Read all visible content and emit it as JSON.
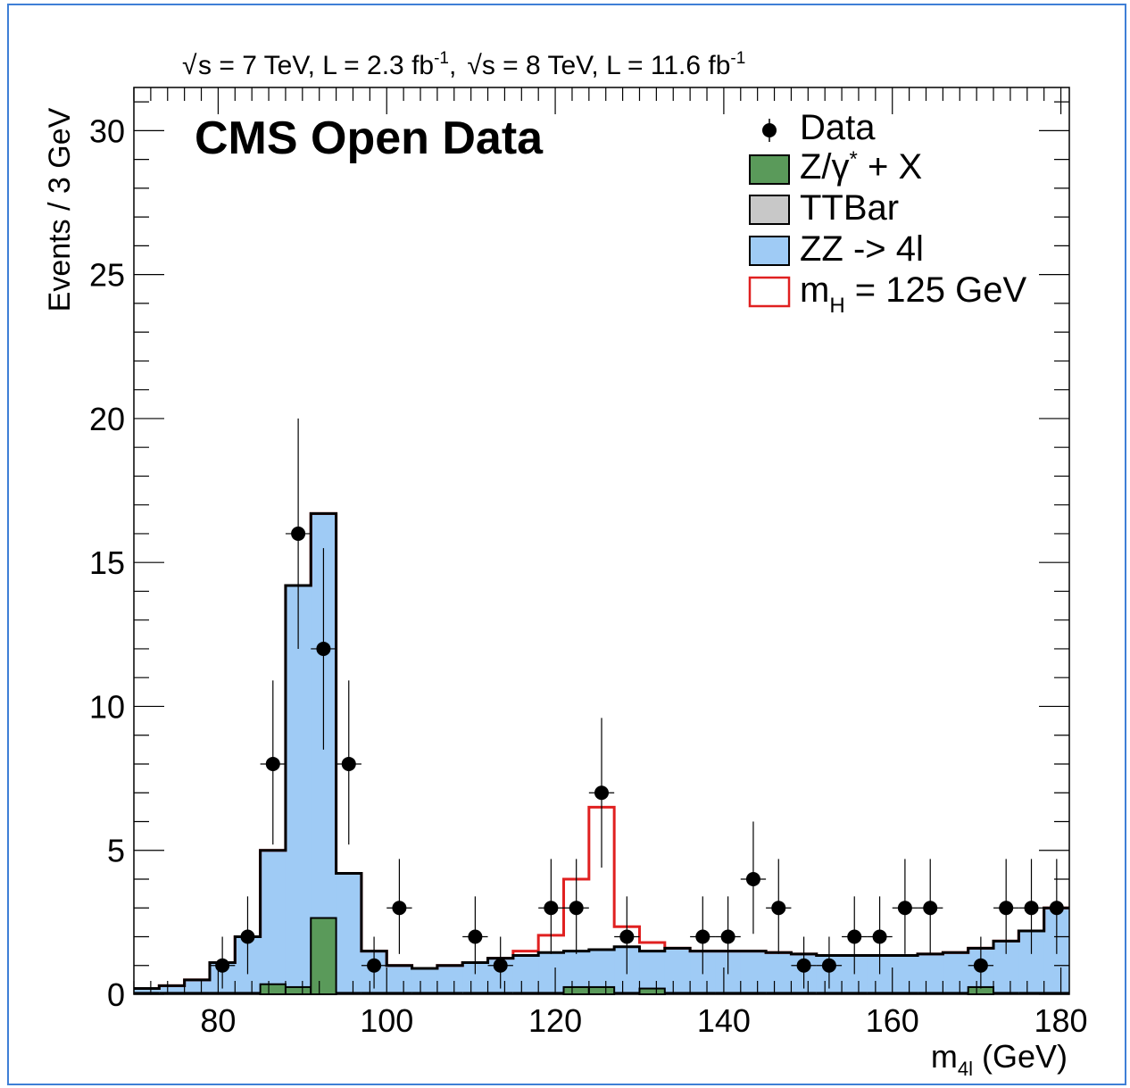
{
  "chart_data": {
    "type": "histogram",
    "header": {
      "part1_prefix": "s = 7 TeV, L = 2.3 fb",
      "part1_sup": "-1",
      "separator": ",",
      "part2_prefix": "s = 8 TeV, L = 11.6 fb",
      "part2_sup": "-1"
    },
    "watermark": "CMS Open Data",
    "ylabel": "Events / 3 GeV",
    "xlabel": {
      "main": "m",
      "sub": "4l",
      "unit": " (GeV)"
    },
    "xlim": [
      70,
      181
    ],
    "ylim": [
      0,
      31.5
    ],
    "xticks": [
      80,
      100,
      120,
      140,
      160,
      180
    ],
    "yticks": [
      0,
      5,
      10,
      15,
      20,
      25,
      30
    ],
    "bin_edges": [
      70,
      73,
      76,
      79,
      82,
      85,
      88,
      91,
      94,
      97,
      100,
      103,
      106,
      109,
      112,
      115,
      118,
      121,
      124,
      127,
      130,
      133,
      136,
      139,
      142,
      145,
      148,
      151,
      154,
      157,
      160,
      163,
      166,
      169,
      172,
      175,
      178,
      181
    ],
    "legend": {
      "data": "Data",
      "zx": {
        "main": "Z/γ",
        "sup": "*",
        "rest": " + X"
      },
      "ttbar": "TTBar",
      "zz": "ZZ -> 4l",
      "higgs": {
        "main": "m",
        "sub": "H",
        "rest": " = 125 GeV"
      },
      "placement": "top-right"
    },
    "series": [
      {
        "key": "zx",
        "color": "#5a9a5a",
        "values": [
          0.05,
          0.05,
          0.05,
          0.05,
          0.05,
          0.35,
          0.25,
          2.65,
          0.05,
          0.05,
          0.05,
          0.05,
          0.05,
          0.05,
          0.05,
          0.05,
          0.05,
          0.25,
          0.25,
          0.05,
          0.2,
          0.05,
          0.05,
          0.05,
          0.05,
          0.05,
          0.05,
          0.05,
          0.05,
          0.05,
          0.05,
          0.05,
          0.05,
          0.25,
          0.05,
          0.05,
          0.05
        ]
      },
      {
        "key": "zz",
        "color": "#9fcbf5",
        "values": [
          0.2,
          0.3,
          0.5,
          1.1,
          2.0,
          5.0,
          14.2,
          16.7,
          4.2,
          1.5,
          1.0,
          0.9,
          1.0,
          1.1,
          1.25,
          1.35,
          1.45,
          1.5,
          1.55,
          1.65,
          1.5,
          1.6,
          1.5,
          1.5,
          1.5,
          1.45,
          1.4,
          1.35,
          1.35,
          1.35,
          1.35,
          1.4,
          1.45,
          1.6,
          1.85,
          2.2,
          3.0
        ]
      },
      {
        "key": "higgs",
        "color": "#e02020",
        "values": [
          0.2,
          0.3,
          0.5,
          1.1,
          2.0,
          5.0,
          14.2,
          16.7,
          4.2,
          1.5,
          1.0,
          0.9,
          1.0,
          1.1,
          1.25,
          1.5,
          2.05,
          4.0,
          6.5,
          2.35,
          1.8,
          1.6,
          1.5,
          1.5,
          1.5,
          1.45,
          1.4,
          1.35,
          1.35,
          1.35,
          1.35,
          1.4,
          1.45,
          1.6,
          1.85,
          2.2,
          3.0
        ]
      }
    ],
    "data_points": [
      {
        "x": 80.5,
        "y": 1,
        "err": [
          0.8,
          1.0
        ]
      },
      {
        "x": 83.5,
        "y": 2,
        "err": [
          1.3,
          1.4
        ]
      },
      {
        "x": 86.5,
        "y": 8,
        "err": [
          2.8,
          2.9
        ]
      },
      {
        "x": 89.5,
        "y": 16,
        "err": [
          4.0,
          4.0
        ]
      },
      {
        "x": 92.5,
        "y": 12,
        "err": [
          3.5,
          3.5
        ]
      },
      {
        "x": 95.5,
        "y": 8,
        "err": [
          2.8,
          2.9
        ]
      },
      {
        "x": 98.5,
        "y": 1,
        "err": [
          0.8,
          1.0
        ]
      },
      {
        "x": 101.5,
        "y": 3,
        "err": [
          1.6,
          1.7
        ]
      },
      {
        "x": 110.5,
        "y": 2,
        "err": [
          1.3,
          1.4
        ]
      },
      {
        "x": 113.5,
        "y": 1,
        "err": [
          0.8,
          1.0
        ]
      },
      {
        "x": 119.5,
        "y": 3,
        "err": [
          1.6,
          1.7
        ]
      },
      {
        "x": 122.5,
        "y": 3,
        "err": [
          1.6,
          1.7
        ]
      },
      {
        "x": 125.5,
        "y": 7,
        "err": [
          2.6,
          2.6
        ]
      },
      {
        "x": 128.5,
        "y": 2,
        "err": [
          1.3,
          1.4
        ]
      },
      {
        "x": 137.5,
        "y": 2,
        "err": [
          1.3,
          1.4
        ]
      },
      {
        "x": 140.5,
        "y": 2,
        "err": [
          1.3,
          1.4
        ]
      },
      {
        "x": 143.5,
        "y": 4,
        "err": [
          1.9,
          2.0
        ]
      },
      {
        "x": 146.5,
        "y": 3,
        "err": [
          1.6,
          1.7
        ]
      },
      {
        "x": 149.5,
        "y": 1,
        "err": [
          0.8,
          1.0
        ]
      },
      {
        "x": 152.5,
        "y": 1,
        "err": [
          0.8,
          1.0
        ]
      },
      {
        "x": 155.5,
        "y": 2,
        "err": [
          1.3,
          1.4
        ]
      },
      {
        "x": 158.5,
        "y": 2,
        "err": [
          1.3,
          1.4
        ]
      },
      {
        "x": 161.5,
        "y": 3,
        "err": [
          1.6,
          1.7
        ]
      },
      {
        "x": 164.5,
        "y": 3,
        "err": [
          1.6,
          1.7
        ]
      },
      {
        "x": 170.5,
        "y": 1,
        "err": [
          0.8,
          1.0
        ]
      },
      {
        "x": 173.5,
        "y": 3,
        "err": [
          1.6,
          1.7
        ]
      },
      {
        "x": 176.5,
        "y": 3,
        "err": [
          1.6,
          1.7
        ]
      },
      {
        "x": 179.5,
        "y": 3,
        "err": [
          1.6,
          1.7
        ]
      }
    ],
    "grid": false
  }
}
